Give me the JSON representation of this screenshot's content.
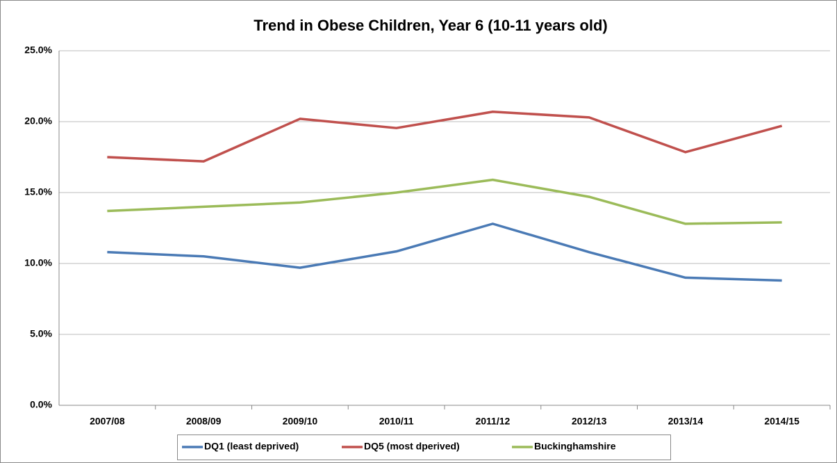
{
  "chart_data": {
    "type": "line",
    "title": "Trend in Obese Children, Year 6 (10-11 years old)",
    "categories": [
      "2007/08",
      "2008/09",
      "2009/10",
      "2010/11",
      "2011/12",
      "2012/13",
      "2013/14",
      "2014/15"
    ],
    "series": [
      {
        "name": "DQ1 (least deprived)",
        "color": "#4a7ab5",
        "values": [
          10.8,
          10.5,
          9.7,
          10.85,
          12.8,
          10.8,
          9.0,
          8.8
        ]
      },
      {
        "name": "DQ5 (most dperived)",
        "color": "#c0504d",
        "values": [
          17.5,
          17.2,
          20.2,
          19.55,
          20.7,
          20.3,
          17.85,
          19.7
        ]
      },
      {
        "name": "Buckinghamshire",
        "color": "#9bbb59",
        "values": [
          13.7,
          14.0,
          14.3,
          15.0,
          15.9,
          14.7,
          12.8,
          12.9
        ]
      }
    ],
    "ylim": [
      0,
      25
    ],
    "yticks": [
      {
        "value": 0,
        "label": "0.0%"
      },
      {
        "value": 5,
        "label": "5.0%"
      },
      {
        "value": 10,
        "label": "10.0%"
      },
      {
        "value": 15,
        "label": "15.0%"
      },
      {
        "value": 20,
        "label": "20.0%"
      },
      {
        "value": 25,
        "label": "25.0%"
      }
    ],
    "grid": true,
    "legend": "bottom"
  }
}
